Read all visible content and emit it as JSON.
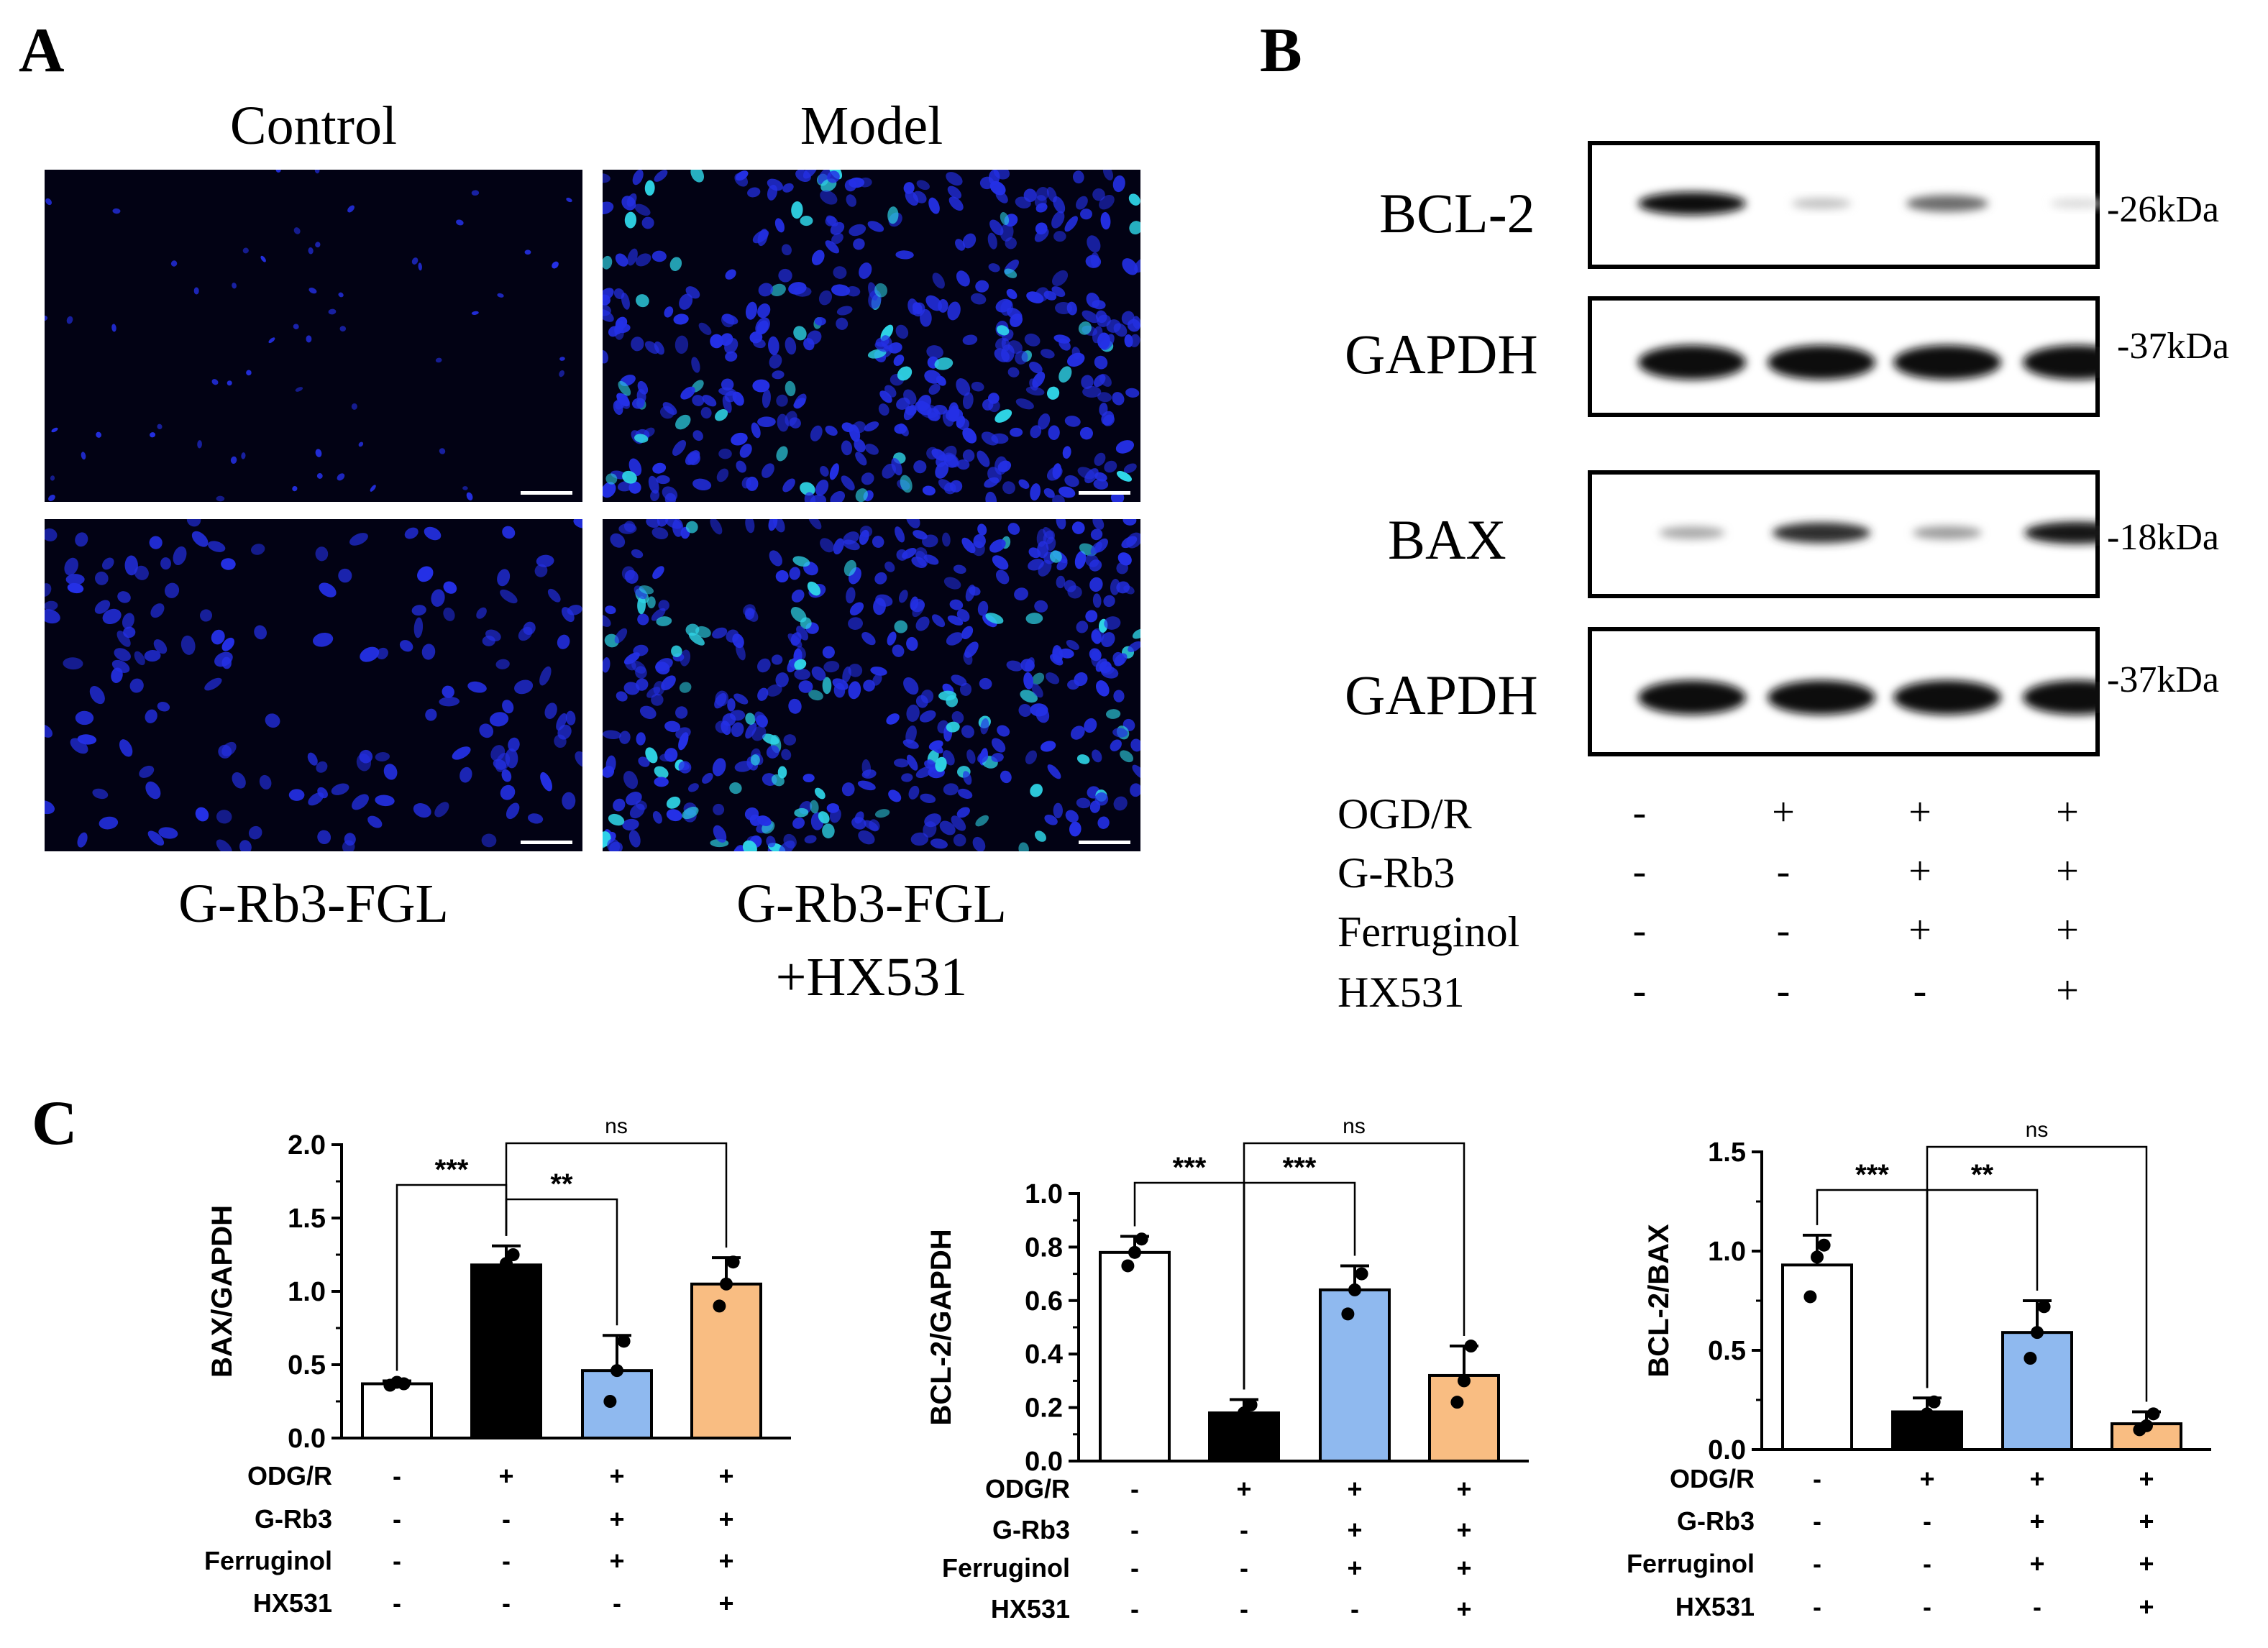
{
  "panel_labels": {
    "a": "A",
    "b": "B",
    "c": "C"
  },
  "panel_a": {
    "captions": {
      "control": "Control",
      "model": "Model",
      "grb3fgl": "G-Rb3-FGL",
      "grb3fgl_hx_line1": "G-Rb3-FGL",
      "grb3fgl_hx_line2": "+HX531"
    },
    "colors": {
      "background": "#020214",
      "nucleus": "#2430e6",
      "positive": "#2fd6e8"
    }
  },
  "panel_b": {
    "blots": [
      {
        "protein": "BCL-2",
        "size": "-26kDa",
        "band_intensity": [
          1.0,
          0.25,
          0.6,
          0.15
        ]
      },
      {
        "protein": "GAPDH",
        "size": "-37kDa",
        "band_intensity": [
          1.0,
          1.0,
          1.0,
          1.0
        ]
      },
      {
        "protein": "BAX",
        "size": "-18kDa",
        "band_intensity": [
          0.35,
          0.85,
          0.4,
          0.95
        ]
      },
      {
        "protein": "GAPDH",
        "size": "-37kDa",
        "band_intensity": [
          1.0,
          1.0,
          1.0,
          1.0
        ]
      }
    ],
    "conditions": [
      {
        "label": "OGD/R",
        "values": [
          "-",
          "+",
          "+",
          "+"
        ]
      },
      {
        "label": "G-Rb3",
        "values": [
          "-",
          "-",
          "+",
          "+"
        ]
      },
      {
        "label": "Ferruginol",
        "values": [
          "-",
          "-",
          "+",
          "+"
        ]
      },
      {
        "label": "HX531",
        "values": [
          "-",
          "-",
          "-",
          "+"
        ]
      }
    ]
  },
  "chart_data": [
    {
      "type": "bar",
      "ylabel": "BAX/GAPDH",
      "ylim": [
        0,
        2.0
      ],
      "yticks": [
        "0.0",
        "0.5",
        "1.0",
        "1.5",
        "2.0"
      ],
      "bar_values": [
        0.37,
        1.18,
        0.46,
        1.05
      ],
      "error": [
        0.02,
        0.13,
        0.24,
        0.18
      ],
      "points": [
        [
          0.36,
          0.38,
          0.37
        ],
        [
          1.1,
          1.19,
          1.25
        ],
        [
          0.25,
          0.46,
          0.66
        ],
        [
          0.9,
          1.05,
          1.2
        ]
      ],
      "bar_colors": [
        "#ffffff",
        "#000000",
        "#8fb9ef",
        "#f9bd82"
      ],
      "significance": [
        {
          "from": 0,
          "to": 1,
          "label": "***"
        },
        {
          "from": 1,
          "to": 2,
          "label": "**"
        },
        {
          "from": 1,
          "to": 3,
          "label": "ns"
        }
      ],
      "conditions": [
        {
          "label": "ODG/R",
          "values": [
            "-",
            "+",
            "+",
            "+"
          ]
        },
        {
          "label": "G-Rb3",
          "values": [
            "-",
            "-",
            "+",
            "+"
          ]
        },
        {
          "label": "Ferruginol",
          "values": [
            "-",
            "-",
            "+",
            "+"
          ]
        },
        {
          "label": "HX531",
          "values": [
            "-",
            "-",
            "-",
            "+"
          ]
        }
      ]
    },
    {
      "type": "bar",
      "ylabel": "BCL-2/GAPDH",
      "ylim": [
        0,
        1.0
      ],
      "yticks": [
        "0.0",
        "0.2",
        "0.4",
        "0.6",
        "0.8",
        "1.0"
      ],
      "bar_values": [
        0.78,
        0.18,
        0.64,
        0.32
      ],
      "error": [
        0.06,
        0.05,
        0.09,
        0.11
      ],
      "points": [
        [
          0.73,
          0.78,
          0.83
        ],
        [
          0.15,
          0.18,
          0.21
        ],
        [
          0.55,
          0.64,
          0.7
        ],
        [
          0.22,
          0.3,
          0.43
        ]
      ],
      "bar_colors": [
        "#ffffff",
        "#000000",
        "#8fb9ef",
        "#f9bd82"
      ],
      "significance": [
        {
          "from": 0,
          "to": 1,
          "label": "***"
        },
        {
          "from": 1,
          "to": 2,
          "label": "***"
        },
        {
          "from": 1,
          "to": 3,
          "label": "ns"
        }
      ],
      "conditions": [
        {
          "label": "ODG/R",
          "values": [
            "-",
            "+",
            "+",
            "+"
          ]
        },
        {
          "label": "G-Rb3",
          "values": [
            "-",
            "-",
            "+",
            "+"
          ]
        },
        {
          "label": "Ferruginol",
          "values": [
            "-",
            "-",
            "+",
            "+"
          ]
        },
        {
          "label": "HX531",
          "values": [
            "-",
            "-",
            "-",
            "+"
          ]
        }
      ]
    },
    {
      "type": "bar",
      "ylabel": "BCL-2/BAX",
      "ylim": [
        0,
        1.5
      ],
      "yticks": [
        "0.0",
        "0.5",
        "1.0",
        "1.5"
      ],
      "bar_values": [
        0.93,
        0.19,
        0.59,
        0.13
      ],
      "error": [
        0.15,
        0.07,
        0.16,
        0.06
      ],
      "points": [
        [
          0.77,
          0.97,
          1.03
        ],
        [
          0.15,
          0.18,
          0.24
        ],
        [
          0.46,
          0.59,
          0.72
        ],
        [
          0.1,
          0.12,
          0.18
        ]
      ],
      "bar_colors": [
        "#ffffff",
        "#000000",
        "#8fb9ef",
        "#f9bd82"
      ],
      "significance": [
        {
          "from": 0,
          "to": 1,
          "label": "***"
        },
        {
          "from": 1,
          "to": 2,
          "label": "**"
        },
        {
          "from": 1,
          "to": 3,
          "label": "ns"
        }
      ],
      "conditions": [
        {
          "label": "ODG/R",
          "values": [
            "-",
            "+",
            "+",
            "+"
          ]
        },
        {
          "label": "G-Rb3",
          "values": [
            "-",
            "-",
            "+",
            "+"
          ]
        },
        {
          "label": "Ferruginol",
          "values": [
            "-",
            "-",
            "+",
            "+"
          ]
        },
        {
          "label": "HX531",
          "values": [
            "-",
            "-",
            "-",
            "+"
          ]
        }
      ]
    }
  ]
}
